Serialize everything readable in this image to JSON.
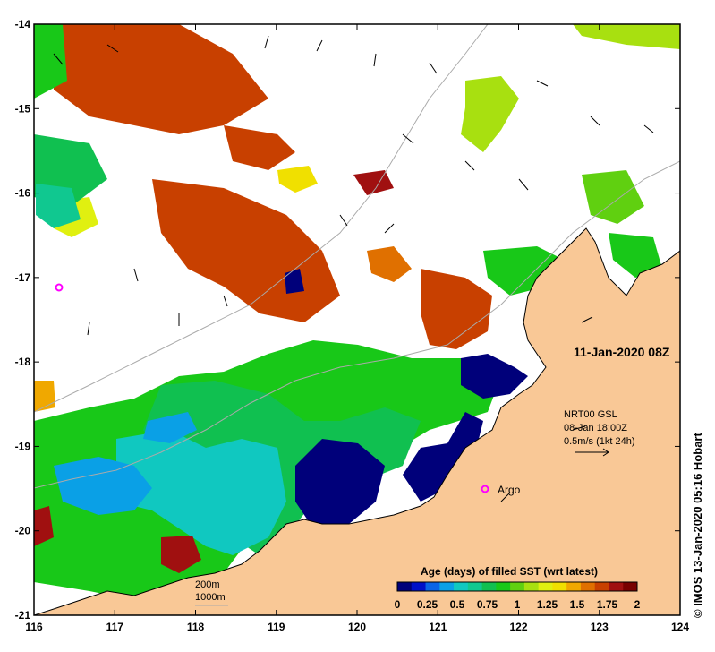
{
  "map": {
    "timestamp": "11-Jan-2020 08Z",
    "vector_info": {
      "line1": "NRT00 GSL",
      "line2": "08-Jan 18:00Z",
      "line3": "0.5m/s (1kt 24h)"
    },
    "argo_label": "Argo",
    "isobath_200": "200m",
    "isobath_1000": "1000m",
    "credit": "© IMOS 13-Jan-2020 05:16 Hobart",
    "lon_ticks": [
      "116",
      "117",
      "118",
      "119",
      "120",
      "121",
      "122",
      "123",
      "124"
    ],
    "lat_ticks": [
      "-14",
      "-15",
      "-16",
      "-17",
      "-18",
      "-19",
      "-20",
      "-21"
    ],
    "colorbar": {
      "title": "Age (days) of filled SST (wrt latest)",
      "ticks": [
        "0",
        "0.25",
        "0.5",
        "0.75",
        "1",
        "1.25",
        "1.5",
        "1.75",
        "2"
      ],
      "colors": [
        "#00007a",
        "#0010c8",
        "#0a64e6",
        "#0aa0e6",
        "#10c8c0",
        "#10c890",
        "#10c050",
        "#18c818",
        "#60d010",
        "#a8e010",
        "#e0f010",
        "#f0e000",
        "#f0a800",
        "#e07000",
        "#c84000",
        "#a01010",
        "#780000"
      ]
    },
    "colors": {
      "land": "#f9c896",
      "argo_marker": "#ff00ff",
      "coastline": "#000000",
      "isobath": "#aaaaaa"
    }
  }
}
